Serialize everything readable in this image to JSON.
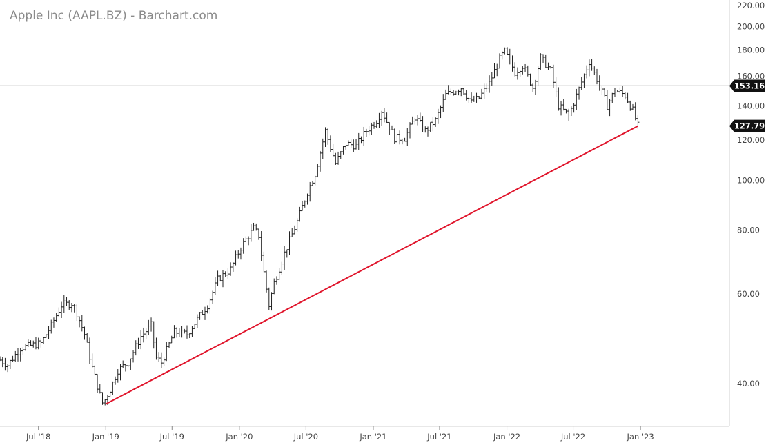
{
  "chart_data": {
    "type": "ohlc",
    "title": "Apple Inc (AAPL.BZ) - Barchart.com",
    "scale": "log",
    "interval": "weekly",
    "ylim": [
      33,
      220
    ],
    "xlim": [
      "2018-03-18",
      "2023-09-01"
    ],
    "y_ticks": [
      {
        "value": 40,
        "label": "40.00"
      },
      {
        "value": 60,
        "label": "60.00"
      },
      {
        "value": 80,
        "label": "80.00"
      },
      {
        "value": 100,
        "label": "100.00"
      },
      {
        "value": 120,
        "label": "120.00"
      },
      {
        "value": 140,
        "label": "140.00"
      },
      {
        "value": 160,
        "label": "160.00"
      },
      {
        "value": 180,
        "label": "180.00"
      },
      {
        "value": 200,
        "label": "200.00"
      },
      {
        "value": 220,
        "label": "220.00"
      }
    ],
    "x_ticks": [
      {
        "date": "2018-07-01",
        "label": "Jul '18"
      },
      {
        "date": "2019-01-01",
        "label": "Jan '19"
      },
      {
        "date": "2019-07-01",
        "label": "Jul '19"
      },
      {
        "date": "2020-01-01",
        "label": "Jan '20"
      },
      {
        "date": "2020-07-01",
        "label": "Jul '20"
      },
      {
        "date": "2021-01-01",
        "label": "Jan '21"
      },
      {
        "date": "2021-07-01",
        "label": "Jul '21"
      },
      {
        "date": "2022-01-01",
        "label": "Jan '22"
      },
      {
        "date": "2022-07-01",
        "label": "Jul '22"
      },
      {
        "date": "2023-01-01",
        "label": "Jan '23"
      }
    ],
    "close_anchors": [
      [
        "2018-03-18",
        44.5
      ],
      [
        "2018-04-08",
        43.5
      ],
      [
        "2018-05-13",
        47
      ],
      [
        "2018-06-10",
        47.5
      ],
      [
        "2018-07-08",
        48
      ],
      [
        "2018-08-05",
        52
      ],
      [
        "2018-09-02",
        57
      ],
      [
        "2018-10-01",
        57.5
      ],
      [
        "2018-10-14",
        55
      ],
      [
        "2018-11-04",
        50
      ],
      [
        "2018-11-25",
        43
      ],
      [
        "2018-12-16",
        38
      ],
      [
        "2018-12-24",
        36.5
      ],
      [
        "2019-01-13",
        39
      ],
      [
        "2019-02-03",
        42.5
      ],
      [
        "2019-03-03",
        44
      ],
      [
        "2019-04-07",
        49.5
      ],
      [
        "2019-05-05",
        52
      ],
      [
        "2019-05-19",
        45
      ],
      [
        "2019-06-02",
        44
      ],
      [
        "2019-07-07",
        50.5
      ],
      [
        "2019-08-11",
        50
      ],
      [
        "2019-09-08",
        53.5
      ],
      [
        "2019-10-06",
        57
      ],
      [
        "2019-11-03",
        64
      ],
      [
        "2019-12-08",
        67
      ],
      [
        "2020-01-05",
        74
      ],
      [
        "2020-02-09",
        80.5
      ],
      [
        "2020-02-23",
        78
      ],
      [
        "2020-03-08",
        66
      ],
      [
        "2020-03-22",
        57
      ],
      [
        "2020-04-05",
        63
      ],
      [
        "2020-05-03",
        72
      ],
      [
        "2020-06-07",
        83
      ],
      [
        "2020-07-05",
        95
      ],
      [
        "2020-07-26",
        103
      ],
      [
        "2020-08-23",
        125
      ],
      [
        "2020-09-06",
        116
      ],
      [
        "2020-09-20",
        108
      ],
      [
        "2020-10-18",
        118
      ],
      [
        "2020-11-15",
        117
      ],
      [
        "2020-12-13",
        125
      ],
      [
        "2021-01-10",
        131
      ],
      [
        "2021-01-24",
        137
      ],
      [
        "2021-02-28",
        121
      ],
      [
        "2021-03-28",
        121
      ],
      [
        "2021-04-25",
        133
      ],
      [
        "2021-05-23",
        125
      ],
      [
        "2021-06-20",
        131
      ],
      [
        "2021-07-18",
        147
      ],
      [
        "2021-08-29",
        152
      ],
      [
        "2021-09-26",
        142
      ],
      [
        "2021-10-17",
        145
      ],
      [
        "2021-11-14",
        155
      ],
      [
        "2021-12-12",
        173
      ],
      [
        "2021-12-26",
        179
      ],
      [
        "2022-01-23",
        163
      ],
      [
        "2022-02-13",
        168
      ],
      [
        "2022-03-13",
        152
      ],
      [
        "2022-04-03",
        174
      ],
      [
        "2022-05-01",
        164
      ],
      [
        "2022-05-22",
        140
      ],
      [
        "2022-06-19",
        134
      ],
      [
        "2022-07-17",
        151
      ],
      [
        "2022-08-14",
        171
      ],
      [
        "2022-09-04",
        158
      ],
      [
        "2022-10-02",
        140
      ],
      [
        "2022-10-23",
        150
      ],
      [
        "2022-11-20",
        147
      ],
      [
        "2022-12-11",
        137
      ],
      [
        "2022-12-25",
        127.8
      ]
    ],
    "horizontal_line": {
      "value": 153.16,
      "label": "153.16",
      "color": "#555555"
    },
    "last_price": {
      "value": 127.79,
      "label": "127.79"
    },
    "trend_line": {
      "from": [
        "2019-01-01",
        36.5
      ],
      "to": [
        "2022-12-25",
        127.79
      ],
      "color": "#e0142b"
    },
    "bar_color": "#222222",
    "badge_color": "#111111"
  }
}
